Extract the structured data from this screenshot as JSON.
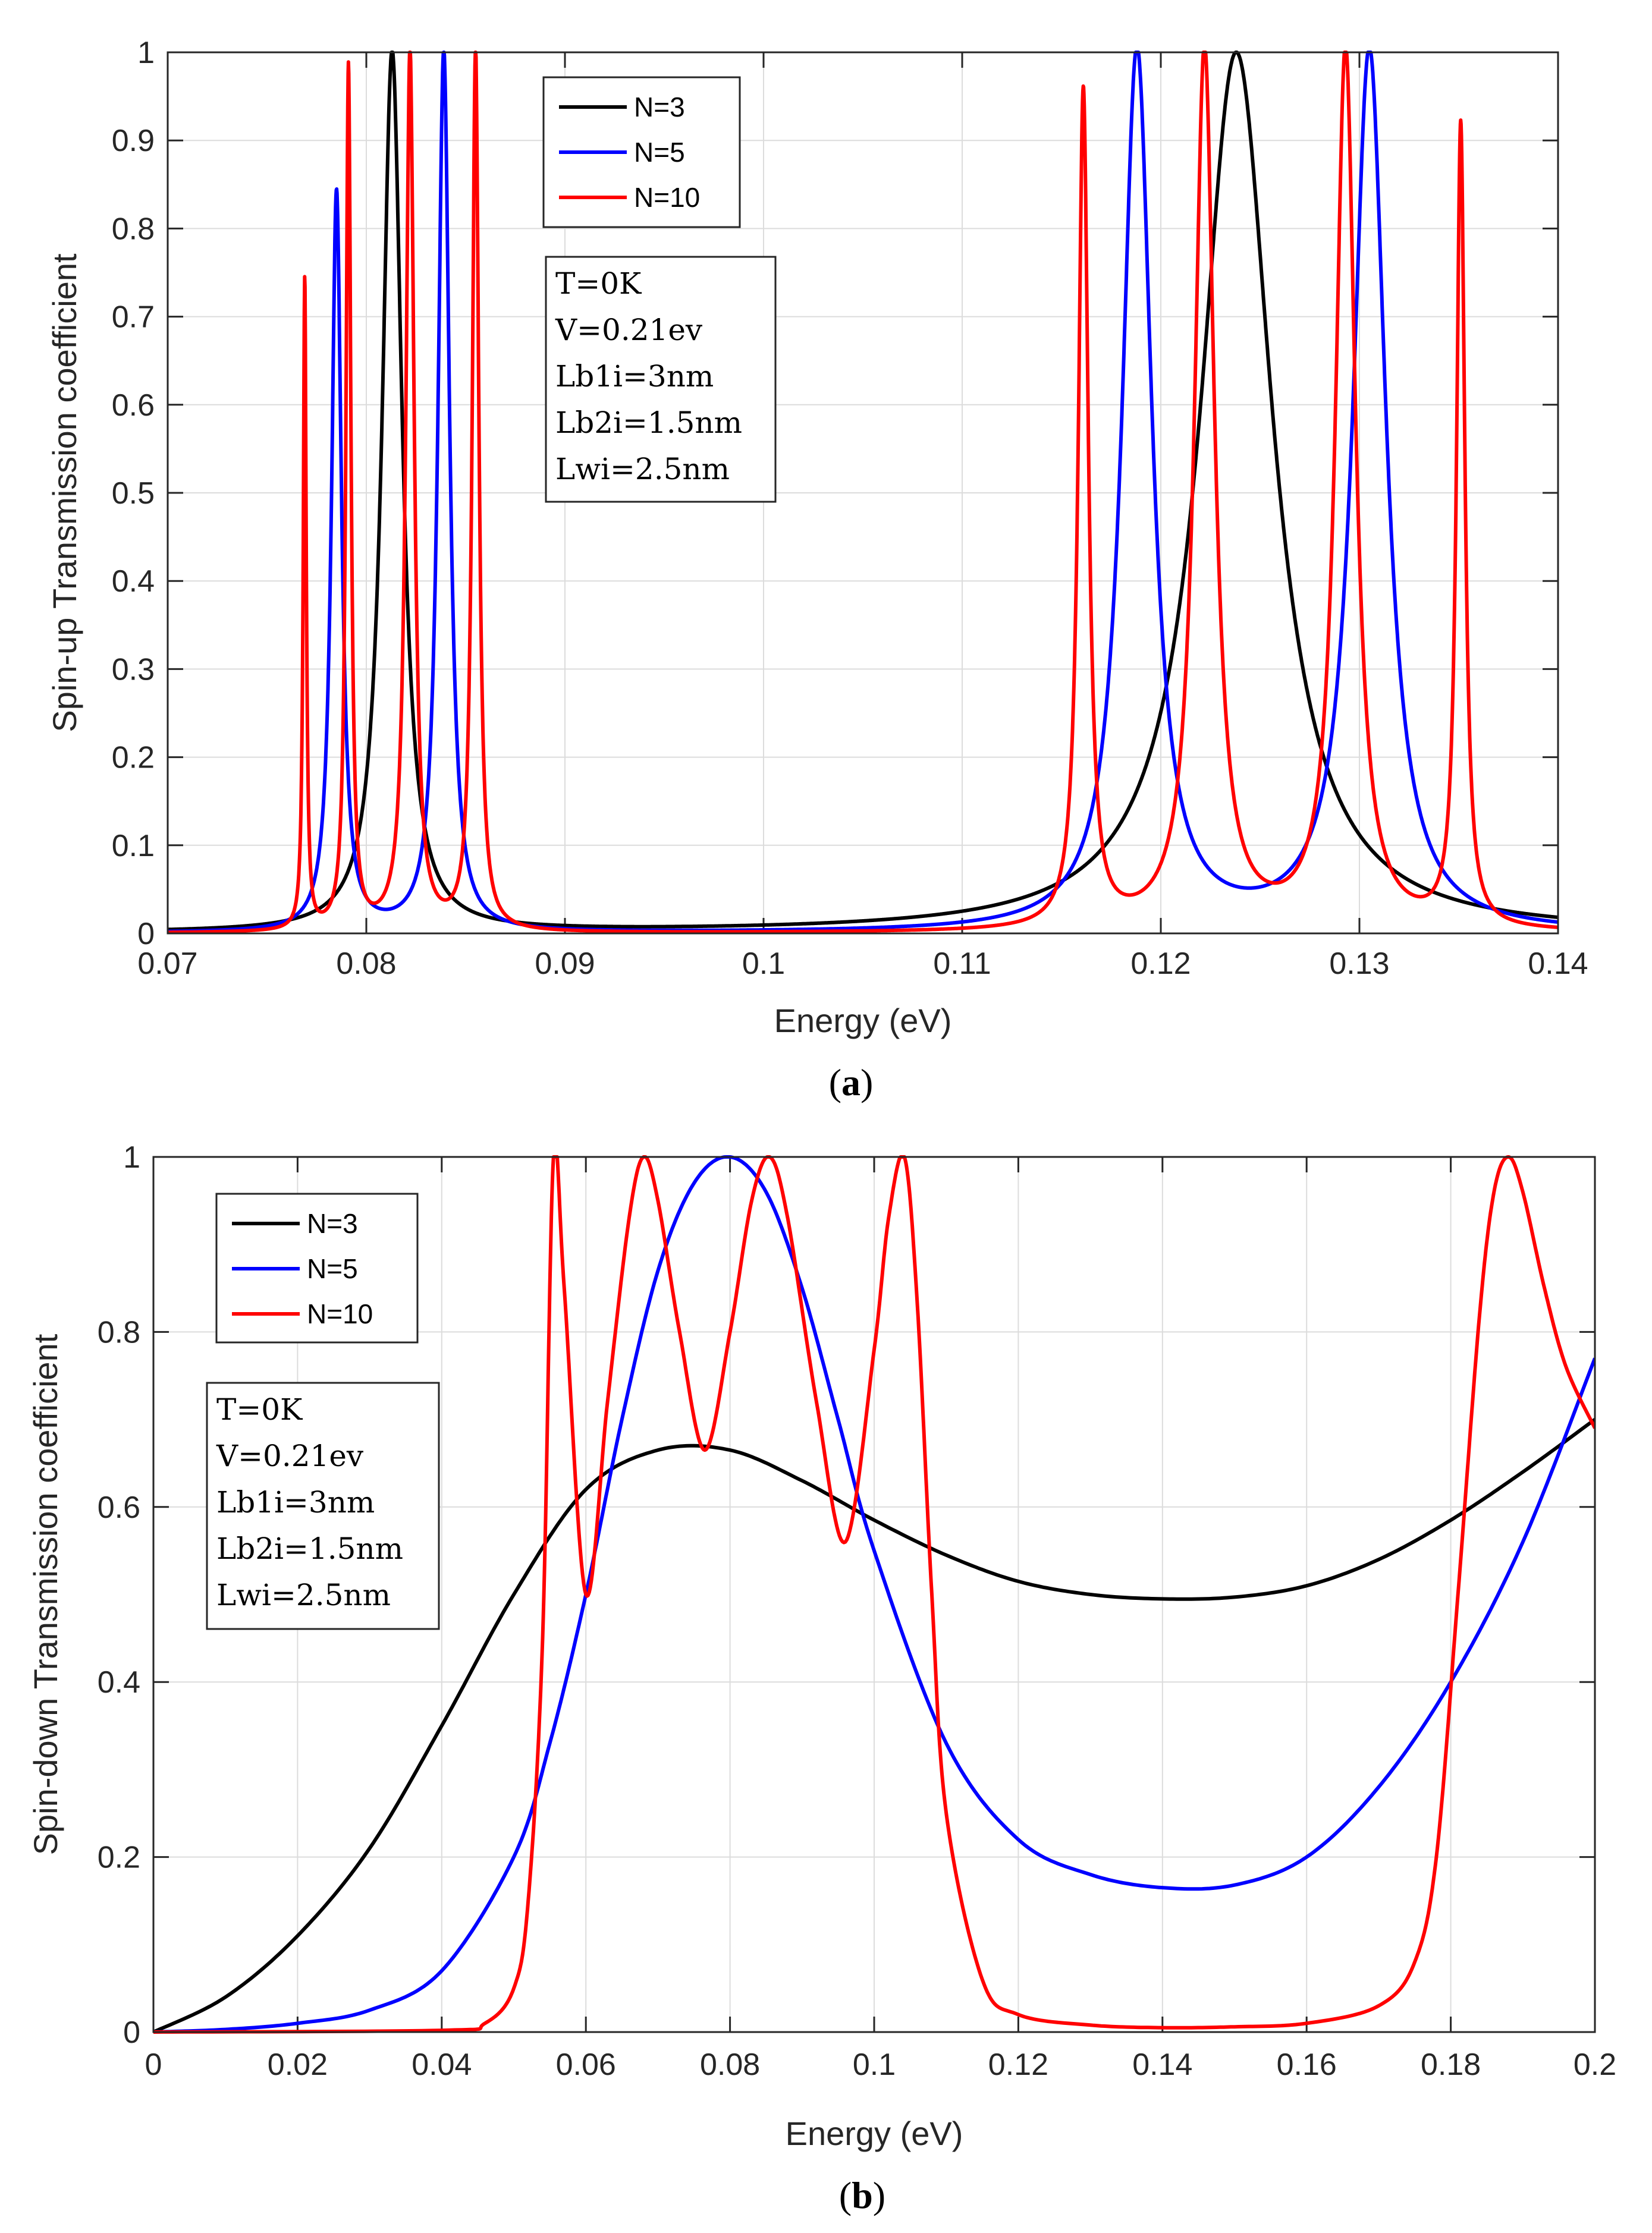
{
  "chart_data": [
    {
      "type": "line",
      "panel": "a",
      "caption": "a",
      "xlabel": "Energy (eV)",
      "ylabel": "Spin-up Transmission coefficient",
      "xlim": [
        0.07,
        0.14
      ],
      "ylim": [
        0,
        1
      ],
      "xticks": [
        "0.07",
        "0.08",
        "0.09",
        "0.1",
        "0.11",
        "0.12",
        "0.13",
        "0.14"
      ],
      "yticks": [
        "0",
        "0.1",
        "0.2",
        "0.3",
        "0.4",
        "0.5",
        "0.6",
        "0.7",
        "0.8",
        "0.9",
        "1"
      ],
      "grid": true,
      "legend_position": "top-center",
      "params": [
        "T=0K",
        "V=0.21ev",
        "Lb1i=3nm",
        "Lb2i=1.5nm",
        "Lwi=2.5nm"
      ],
      "series": [
        {
          "name": "N=3",
          "color": "#000000",
          "baseline": 0.0,
          "peaks": [
            {
              "x": 0.0813,
              "y": 1.0,
              "w": 0.0006
            },
            {
              "x": 0.1238,
              "y": 1.0,
              "w": 0.0022
            }
          ]
        },
        {
          "name": "N=5",
          "color": "#0000ff",
          "baseline": 0.0,
          "peaks": [
            {
              "x": 0.0785,
              "y": 0.84,
              "w": 0.0003
            },
            {
              "x": 0.0839,
              "y": 1.0,
              "w": 0.00035
            },
            {
              "x": 0.1188,
              "y": 1.0,
              "w": 0.0009
            },
            {
              "x": 0.1305,
              "y": 1.0,
              "w": 0.001
            }
          ]
        },
        {
          "name": "N=10",
          "color": "#ff0000",
          "baseline": 0.0,
          "peaks": [
            {
              "x": 0.0769,
              "y": 0.74,
              "w": 9e-05
            },
            {
              "x": 0.0791,
              "y": 0.98,
              "w": 0.00015
            },
            {
              "x": 0.0822,
              "y": 1.0,
              "w": 0.00025
            },
            {
              "x": 0.0855,
              "y": 1.0,
              "w": 0.0002
            },
            {
              "x": 0.1161,
              "y": 0.95,
              "w": 0.0003
            },
            {
              "x": 0.1222,
              "y": 1.0,
              "w": 0.0006
            },
            {
              "x": 0.1293,
              "y": 1.0,
              "w": 0.0006
            },
            {
              "x": 0.1351,
              "y": 0.91,
              "w": 0.00025
            }
          ]
        }
      ]
    },
    {
      "type": "line",
      "panel": "b",
      "caption": "b",
      "xlabel": "Energy (eV)",
      "ylabel": "Spin-down Transmission coefficient",
      "xlim": [
        0,
        0.2
      ],
      "ylim": [
        0,
        1
      ],
      "xticks": [
        "0",
        "0.02",
        "0.04",
        "0.06",
        "0.08",
        "0.1",
        "0.12",
        "0.14",
        "0.16",
        "0.18",
        "0.2"
      ],
      "yticks": [
        "0",
        "0.2",
        "0.4",
        "0.6",
        "0.8",
        "1"
      ],
      "grid": true,
      "legend_position": "top-left",
      "params": [
        "T=0K",
        "V=0.21ev",
        "Lb1i=3nm",
        "Lb2i=1.5nm",
        "Lwi=2.5nm"
      ],
      "series": [
        {
          "name": "N=3",
          "color": "#000000",
          "x": [
            0,
            0.01,
            0.02,
            0.03,
            0.04,
            0.05,
            0.06,
            0.07,
            0.08,
            0.09,
            0.1,
            0.11,
            0.12,
            0.13,
            0.14,
            0.15,
            0.16,
            0.17,
            0.18,
            0.19,
            0.2
          ],
          "y": [
            0,
            0.04,
            0.11,
            0.21,
            0.35,
            0.5,
            0.62,
            0.665,
            0.665,
            0.63,
            0.585,
            0.545,
            0.515,
            0.5,
            0.495,
            0.497,
            0.51,
            0.54,
            0.585,
            0.64,
            0.7
          ]
        },
        {
          "name": "N=5",
          "color": "#0000ff",
          "x": [
            0,
            0.01,
            0.02,
            0.03,
            0.04,
            0.05,
            0.055,
            0.06,
            0.065,
            0.07,
            0.075,
            0.08,
            0.085,
            0.09,
            0.095,
            0.1,
            0.11,
            0.12,
            0.13,
            0.14,
            0.15,
            0.16,
            0.17,
            0.18,
            0.19,
            0.2
          ],
          "y": [
            0,
            0.003,
            0.01,
            0.025,
            0.07,
            0.2,
            0.33,
            0.5,
            0.7,
            0.87,
            0.97,
            1.0,
            0.96,
            0.85,
            0.7,
            0.55,
            0.33,
            0.22,
            0.18,
            0.165,
            0.168,
            0.2,
            0.28,
            0.4,
            0.56,
            0.77
          ]
        },
        {
          "name": "N=10",
          "color": "#ff0000",
          "x": [
            0,
            0.04,
            0.046,
            0.05,
            0.052,
            0.054,
            0.0555,
            0.057,
            0.06,
            0.063,
            0.066,
            0.068,
            0.07,
            0.073,
            0.0765,
            0.08,
            0.083,
            0.0855,
            0.088,
            0.092,
            0.096,
            0.1,
            0.102,
            0.1042,
            0.106,
            0.108,
            0.11,
            0.115,
            0.12,
            0.13,
            0.14,
            0.15,
            0.16,
            0.17,
            0.175,
            0.178,
            0.181,
            0.184,
            0.186,
            0.188,
            0.19,
            0.193,
            0.196,
            0.2
          ],
          "y": [
            0,
            0.002,
            0.01,
            0.05,
            0.15,
            0.45,
            1.0,
            0.85,
            0.5,
            0.72,
            0.93,
            1.0,
            0.95,
            0.8,
            0.665,
            0.8,
            0.95,
            1.0,
            0.93,
            0.72,
            0.56,
            0.78,
            0.93,
            1.0,
            0.83,
            0.5,
            0.25,
            0.06,
            0.02,
            0.008,
            0.005,
            0.006,
            0.01,
            0.03,
            0.08,
            0.2,
            0.5,
            0.82,
            0.96,
            1.0,
            0.96,
            0.85,
            0.76,
            0.69
          ]
        }
      ]
    }
  ]
}
